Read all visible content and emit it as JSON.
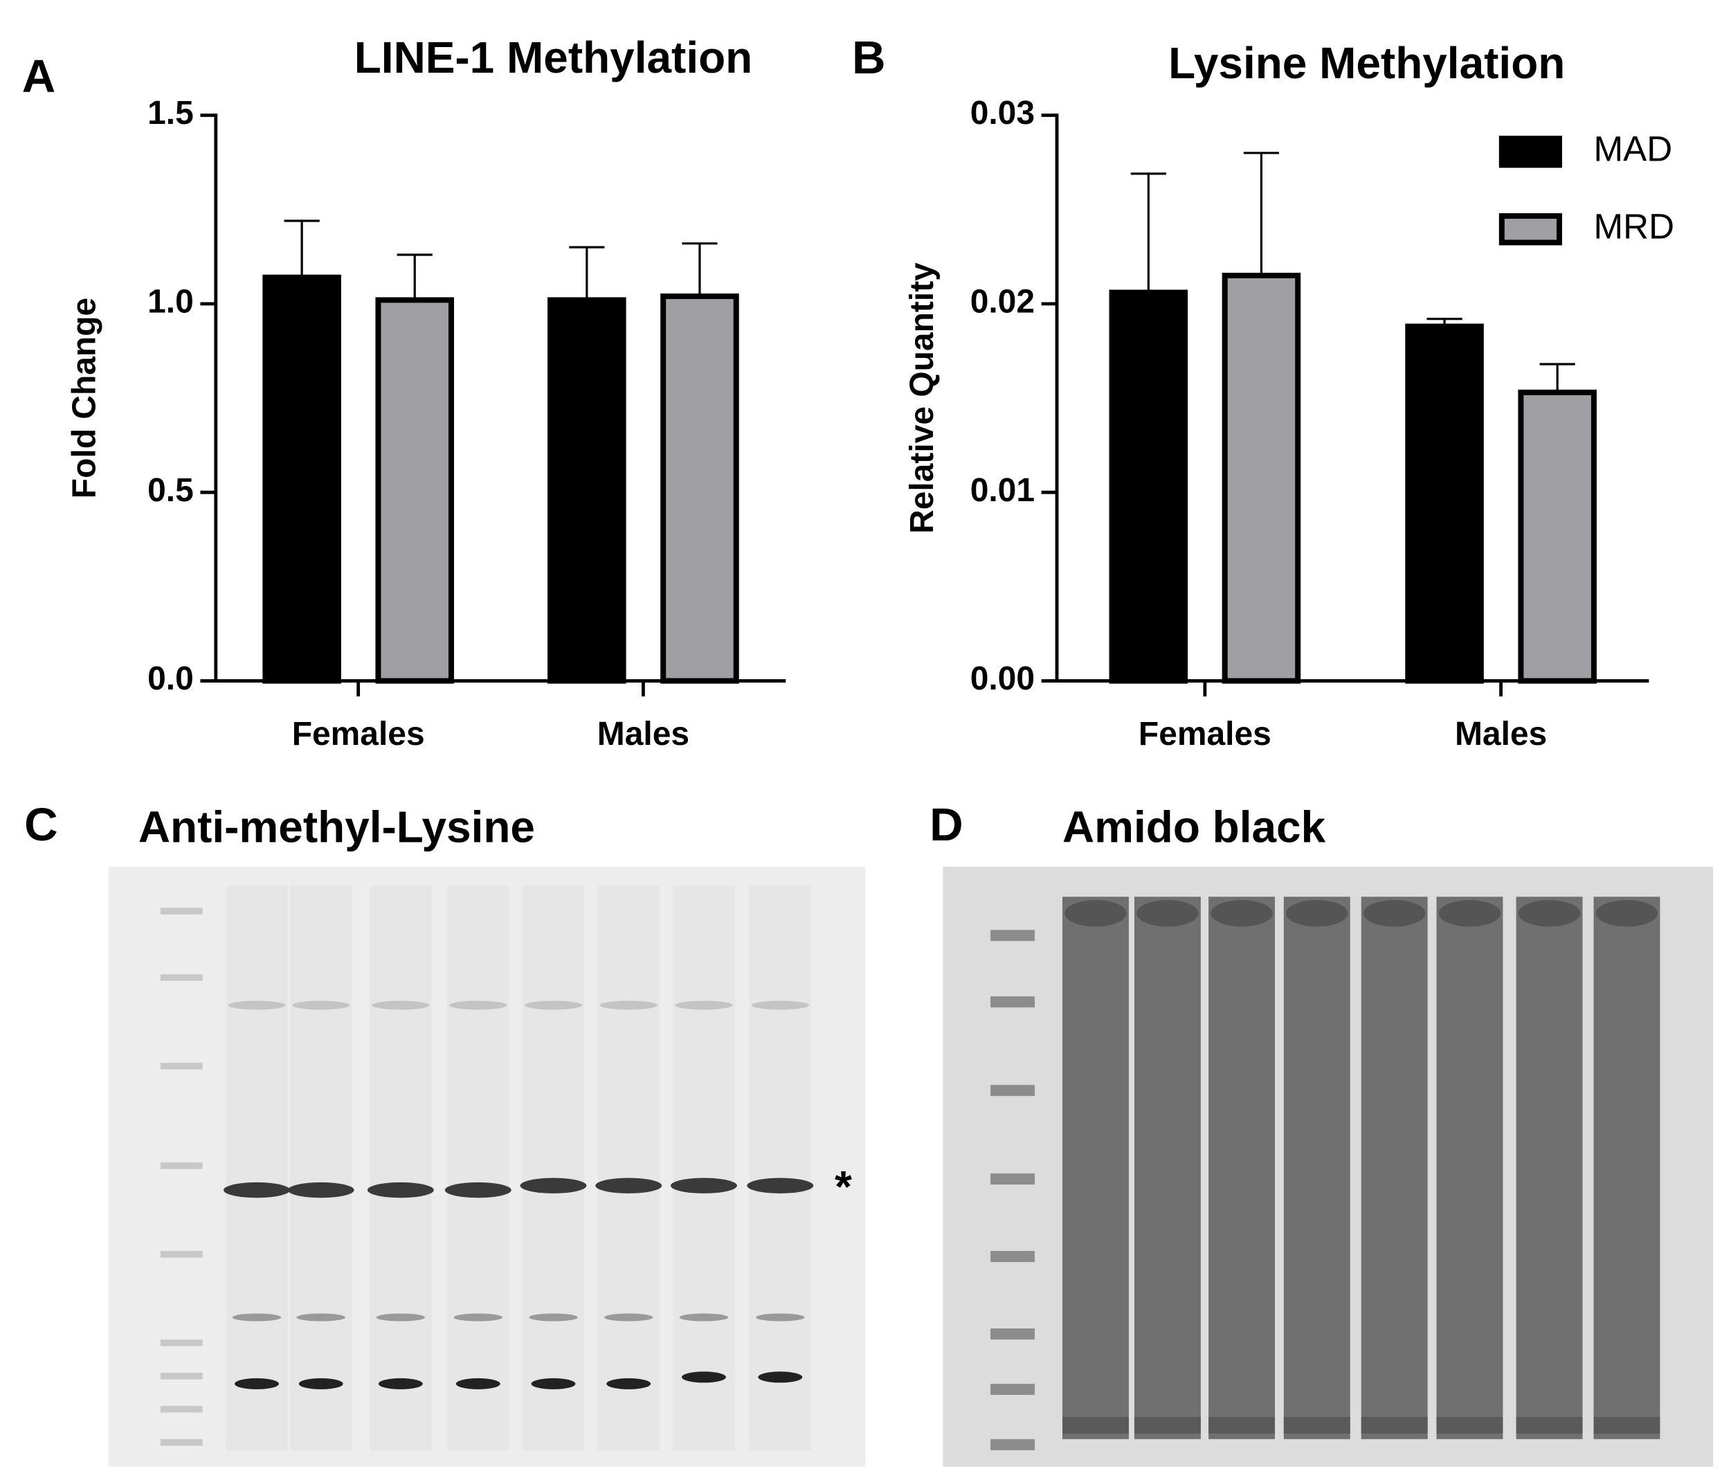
{
  "chart_data": [
    {
      "type": "bar",
      "panel": "A",
      "title": "LINE-1 Methylation",
      "y_label": "Fold Change",
      "categories": [
        "Females",
        "Males"
      ],
      "series": [
        {
          "name": "MAD",
          "color": "#000000",
          "values": [
            1.07,
            1.01
          ],
          "errors": [
            0.15,
            0.14
          ]
        },
        {
          "name": "MRD",
          "color": "#a0a0a4",
          "values": [
            1.01,
            1.02
          ],
          "errors": [
            0.12,
            0.14
          ]
        }
      ],
      "ylim": [
        0,
        1.5
      ],
      "yticks": [
        {
          "value": 0,
          "label": "0.0"
        },
        0.5,
        {
          "value": 1,
          "label": "1.0"
        },
        1.5
      ]
    },
    {
      "type": "bar",
      "panel": "B",
      "title": "Lysine Methylation",
      "y_label": "Relative Quantity",
      "categories": [
        "Females",
        "Males"
      ],
      "series": [
        {
          "name": "MAD",
          "color": "#000000",
          "values": [
            0.0206,
            0.0188
          ],
          "errors": [
            0.0063,
            0.0004
          ]
        },
        {
          "name": "MRD",
          "color": "#a0a0a4",
          "values": [
            0.0215,
            0.0153
          ],
          "errors": [
            0.0065,
            0.0015
          ]
        }
      ],
      "ylim": [
        0,
        0.03
      ],
      "yticks": [
        {
          "value": 0,
          "label": "0.00"
        },
        0.01,
        0.02,
        0.03
      ],
      "legend": "upper right"
    }
  ],
  "blots": [
    {
      "panel": "C",
      "title": "Anti-methyl-Lysine",
      "annotation": "*"
    },
    {
      "panel": "D",
      "title": "Amido black"
    }
  ]
}
